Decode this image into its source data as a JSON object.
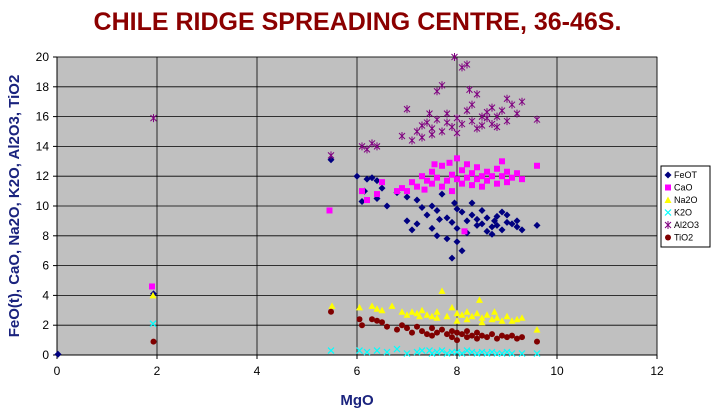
{
  "chart_data": {
    "type": "scatter",
    "title": "CHILE RIDGE SPREADING CENTRE, 36-46S.",
    "xlabel": "MgO",
    "ylabel": "FeO(t), CaO, Na2O, K2O, Al2O3, TiO2",
    "xlim": [
      0,
      12
    ],
    "ylim": [
      0,
      20
    ],
    "xticks": [
      "0",
      "2",
      "4",
      "6",
      "8",
      "10",
      "12"
    ],
    "yticks": [
      "0",
      "2",
      "4",
      "6",
      "8",
      "10",
      "12",
      "14",
      "16",
      "18",
      "20"
    ],
    "grid": true,
    "legend_position": "right",
    "plot_background": "#c0c0c0",
    "series": [
      {
        "name": "FeOT",
        "color": "#000080",
        "marker": "diamond",
        "points": [
          [
            0.02,
            0.05
          ],
          [
            1.93,
            4.1
          ],
          [
            5.48,
            13.1
          ],
          [
            6.0,
            12.0
          ],
          [
            6.2,
            11.8
          ],
          [
            6.3,
            11.9
          ],
          [
            6.4,
            11.7
          ],
          [
            6.5,
            11.2
          ],
          [
            6.1,
            10.3
          ],
          [
            6.15,
            11.0
          ],
          [
            6.4,
            10.5
          ],
          [
            6.6,
            10.0
          ],
          [
            6.8,
            10.9
          ],
          [
            7.0,
            10.6
          ],
          [
            7.2,
            10.4
          ],
          [
            7.0,
            9.0
          ],
          [
            7.1,
            8.4
          ],
          [
            7.2,
            8.8
          ],
          [
            7.4,
            9.4
          ],
          [
            7.5,
            10.0
          ],
          [
            7.6,
            9.7
          ],
          [
            7.5,
            8.5
          ],
          [
            7.6,
            8.0
          ],
          [
            7.7,
            10.8
          ],
          [
            7.8,
            9.2
          ],
          [
            7.9,
            8.9
          ],
          [
            7.8,
            7.8
          ],
          [
            7.9,
            6.5
          ],
          [
            8.0,
            9.8
          ],
          [
            8.0,
            8.5
          ],
          [
            8.1,
            7.0
          ],
          [
            8.1,
            9.6
          ],
          [
            8.2,
            9.0
          ],
          [
            8.2,
            8.2
          ],
          [
            8.3,
            10.2
          ],
          [
            8.3,
            9.4
          ],
          [
            8.4,
            8.7
          ],
          [
            8.4,
            9.1
          ],
          [
            8.5,
            8.8
          ],
          [
            8.5,
            9.7
          ],
          [
            8.6,
            8.3
          ],
          [
            8.6,
            9.2
          ],
          [
            8.7,
            8.6
          ],
          [
            8.7,
            8.1
          ],
          [
            8.8,
            9.3
          ],
          [
            8.8,
            8.7
          ],
          [
            8.9,
            9.6
          ],
          [
            8.9,
            8.4
          ],
          [
            9.0,
            8.9
          ],
          [
            9.0,
            9.4
          ],
          [
            9.1,
            8.8
          ],
          [
            9.2,
            9.0
          ],
          [
            9.2,
            8.6
          ],
          [
            9.3,
            8.4
          ],
          [
            9.6,
            8.7
          ],
          [
            7.3,
            9.9
          ],
          [
            8.0,
            7.6
          ],
          [
            7.95,
            10.2
          ],
          [
            7.65,
            9.1
          ],
          [
            8.75,
            9.0
          ]
        ]
      },
      {
        "name": "CaO",
        "color": "#ff00ff",
        "marker": "square",
        "points": [
          [
            1.9,
            4.6
          ],
          [
            5.45,
            9.7
          ],
          [
            6.1,
            11.0
          ],
          [
            6.2,
            10.4
          ],
          [
            6.4,
            10.8
          ],
          [
            6.5,
            11.6
          ],
          [
            6.8,
            11.0
          ],
          [
            6.9,
            11.2
          ],
          [
            7.0,
            11.0
          ],
          [
            7.1,
            11.6
          ],
          [
            7.2,
            11.3
          ],
          [
            7.3,
            12.0
          ],
          [
            7.4,
            11.7
          ],
          [
            7.5,
            11.5
          ],
          [
            7.5,
            12.3
          ],
          [
            7.6,
            11.9
          ],
          [
            7.7,
            12.7
          ],
          [
            7.7,
            11.3
          ],
          [
            7.8,
            11.7
          ],
          [
            7.9,
            12.1
          ],
          [
            7.9,
            11.0
          ],
          [
            8.0,
            13.2
          ],
          [
            8.0,
            11.8
          ],
          [
            8.1,
            12.4
          ],
          [
            8.1,
            11.5
          ],
          [
            8.2,
            11.9
          ],
          [
            8.2,
            12.8
          ],
          [
            8.3,
            12.2
          ],
          [
            8.3,
            11.4
          ],
          [
            8.4,
            11.8
          ],
          [
            8.4,
            12.6
          ],
          [
            8.5,
            12.0
          ],
          [
            8.5,
            11.3
          ],
          [
            8.6,
            11.7
          ],
          [
            8.6,
            12.3
          ],
          [
            8.7,
            12.0
          ],
          [
            8.8,
            11.5
          ],
          [
            8.8,
            12.5
          ],
          [
            8.9,
            12.0
          ],
          [
            9.0,
            11.6
          ],
          [
            9.0,
            12.3
          ],
          [
            9.1,
            11.9
          ],
          [
            9.2,
            12.2
          ],
          [
            9.3,
            11.8
          ],
          [
            9.6,
            12.7
          ],
          [
            7.35,
            11.1
          ],
          [
            7.55,
            12.8
          ],
          [
            8.15,
            8.3
          ],
          [
            8.9,
            13.0
          ],
          [
            7.85,
            12.9
          ]
        ]
      },
      {
        "name": "Na2O",
        "color": "#ffff00",
        "marker": "triangle",
        "points": [
          [
            1.92,
            4.0
          ],
          [
            5.5,
            3.3
          ],
          [
            6.05,
            3.2
          ],
          [
            6.3,
            3.3
          ],
          [
            6.4,
            3.1
          ],
          [
            6.5,
            3.0
          ],
          [
            6.7,
            3.3
          ],
          [
            6.9,
            2.9
          ],
          [
            7.0,
            2.7
          ],
          [
            7.1,
            2.9
          ],
          [
            7.2,
            2.8
          ],
          [
            7.3,
            3.0
          ],
          [
            7.4,
            2.7
          ],
          [
            7.5,
            2.6
          ],
          [
            7.6,
            2.9
          ],
          [
            7.6,
            2.5
          ],
          [
            7.7,
            4.3
          ],
          [
            7.8,
            2.6
          ],
          [
            7.9,
            3.2
          ],
          [
            8.0,
            2.8
          ],
          [
            8.0,
            2.3
          ],
          [
            8.1,
            2.7
          ],
          [
            8.2,
            2.9
          ],
          [
            8.2,
            2.4
          ],
          [
            8.3,
            2.6
          ],
          [
            8.4,
            2.8
          ],
          [
            8.5,
            2.5
          ],
          [
            8.5,
            2.2
          ],
          [
            8.6,
            2.7
          ],
          [
            8.7,
            2.4
          ],
          [
            8.8,
            2.5
          ],
          [
            8.9,
            2.3
          ],
          [
            9.0,
            2.6
          ],
          [
            9.1,
            2.3
          ],
          [
            9.2,
            2.4
          ],
          [
            9.3,
            2.5
          ],
          [
            9.6,
            1.7
          ],
          [
            8.45,
            3.7
          ],
          [
            7.25,
            2.6
          ],
          [
            8.75,
            2.9
          ]
        ]
      },
      {
        "name": "K2O",
        "color": "#00ffff",
        "marker": "cross",
        "points": [
          [
            1.92,
            2.1
          ],
          [
            5.48,
            0.3
          ],
          [
            6.05,
            0.3
          ],
          [
            6.2,
            0.2
          ],
          [
            6.4,
            0.3
          ],
          [
            6.6,
            0.2
          ],
          [
            6.8,
            0.4
          ],
          [
            7.0,
            0.1
          ],
          [
            7.2,
            0.2
          ],
          [
            7.3,
            0.3
          ],
          [
            7.5,
            0.1
          ],
          [
            7.6,
            0.2
          ],
          [
            7.7,
            0.3
          ],
          [
            7.8,
            0.1
          ],
          [
            7.9,
            0.2
          ],
          [
            8.0,
            0.2
          ],
          [
            8.1,
            0.1
          ],
          [
            8.2,
            0.3
          ],
          [
            8.3,
            0.2
          ],
          [
            8.4,
            0.1
          ],
          [
            8.5,
            0.2
          ],
          [
            8.6,
            0.1
          ],
          [
            8.7,
            0.2
          ],
          [
            8.8,
            0.1
          ],
          [
            8.9,
            0.1
          ],
          [
            9.0,
            0.2
          ],
          [
            9.1,
            0.1
          ],
          [
            9.3,
            0.1
          ],
          [
            9.6,
            0.1
          ],
          [
            7.45,
            0.3
          ]
        ]
      },
      {
        "name": "Al2O3",
        "color": "#800080",
        "marker": "star",
        "points": [
          [
            1.93,
            15.9
          ],
          [
            5.48,
            13.4
          ],
          [
            6.1,
            14.0
          ],
          [
            6.2,
            13.8
          ],
          [
            6.3,
            14.2
          ],
          [
            6.4,
            14.0
          ],
          [
            6.9,
            14.7
          ],
          [
            7.0,
            16.5
          ],
          [
            7.1,
            14.4
          ],
          [
            7.2,
            15.0
          ],
          [
            7.3,
            15.4
          ],
          [
            7.3,
            14.6
          ],
          [
            7.4,
            15.6
          ],
          [
            7.5,
            15.2
          ],
          [
            7.5,
            14.8
          ],
          [
            7.6,
            17.7
          ],
          [
            7.6,
            15.8
          ],
          [
            7.7,
            18.1
          ],
          [
            7.7,
            15.0
          ],
          [
            7.8,
            15.6
          ],
          [
            7.8,
            16.2
          ],
          [
            7.9,
            15.3
          ],
          [
            7.95,
            20.0
          ],
          [
            8.0,
            15.9
          ],
          [
            8.0,
            14.9
          ],
          [
            8.1,
            19.3
          ],
          [
            8.1,
            15.5
          ],
          [
            8.2,
            19.5
          ],
          [
            8.2,
            16.4
          ],
          [
            8.3,
            15.7
          ],
          [
            8.3,
            16.8
          ],
          [
            8.4,
            15.2
          ],
          [
            8.4,
            17.5
          ],
          [
            8.5,
            16.0
          ],
          [
            8.5,
            15.4
          ],
          [
            8.6,
            16.3
          ],
          [
            8.6,
            15.9
          ],
          [
            8.7,
            15.5
          ],
          [
            8.7,
            16.6
          ],
          [
            8.8,
            16.0
          ],
          [
            8.8,
            15.3
          ],
          [
            8.9,
            16.4
          ],
          [
            9.0,
            17.2
          ],
          [
            9.0,
            15.7
          ],
          [
            9.1,
            16.8
          ],
          [
            9.2,
            16.2
          ],
          [
            9.3,
            17.0
          ],
          [
            9.6,
            15.8
          ],
          [
            7.45,
            16.2
          ],
          [
            8.25,
            17.8
          ]
        ]
      },
      {
        "name": "TiO2",
        "color": "#800000",
        "marker": "circle",
        "points": [
          [
            1.93,
            0.9
          ],
          [
            5.48,
            2.9
          ],
          [
            6.05,
            2.4
          ],
          [
            6.1,
            2.0
          ],
          [
            6.3,
            2.4
          ],
          [
            6.4,
            2.3
          ],
          [
            6.5,
            2.2
          ],
          [
            6.6,
            1.9
          ],
          [
            6.8,
            1.7
          ],
          [
            6.9,
            2.0
          ],
          [
            7.0,
            1.8
          ],
          [
            7.1,
            1.5
          ],
          [
            7.2,
            1.9
          ],
          [
            7.3,
            1.6
          ],
          [
            7.4,
            1.4
          ],
          [
            7.5,
            1.8
          ],
          [
            7.5,
            1.3
          ],
          [
            7.6,
            1.5
          ],
          [
            7.7,
            1.7
          ],
          [
            7.8,
            1.4
          ],
          [
            7.9,
            1.6
          ],
          [
            7.9,
            1.2
          ],
          [
            8.0,
            1.5
          ],
          [
            8.0,
            1.0
          ],
          [
            8.1,
            1.4
          ],
          [
            8.2,
            1.6
          ],
          [
            8.2,
            1.2
          ],
          [
            8.3,
            1.3
          ],
          [
            8.4,
            1.5
          ],
          [
            8.4,
            1.1
          ],
          [
            8.5,
            1.3
          ],
          [
            8.6,
            1.2
          ],
          [
            8.7,
            1.4
          ],
          [
            8.8,
            1.1
          ],
          [
            8.9,
            1.3
          ],
          [
            9.0,
            1.2
          ],
          [
            9.1,
            1.3
          ],
          [
            9.2,
            1.1
          ],
          [
            9.3,
            1.2
          ],
          [
            9.6,
            0.9
          ]
        ]
      }
    ]
  }
}
